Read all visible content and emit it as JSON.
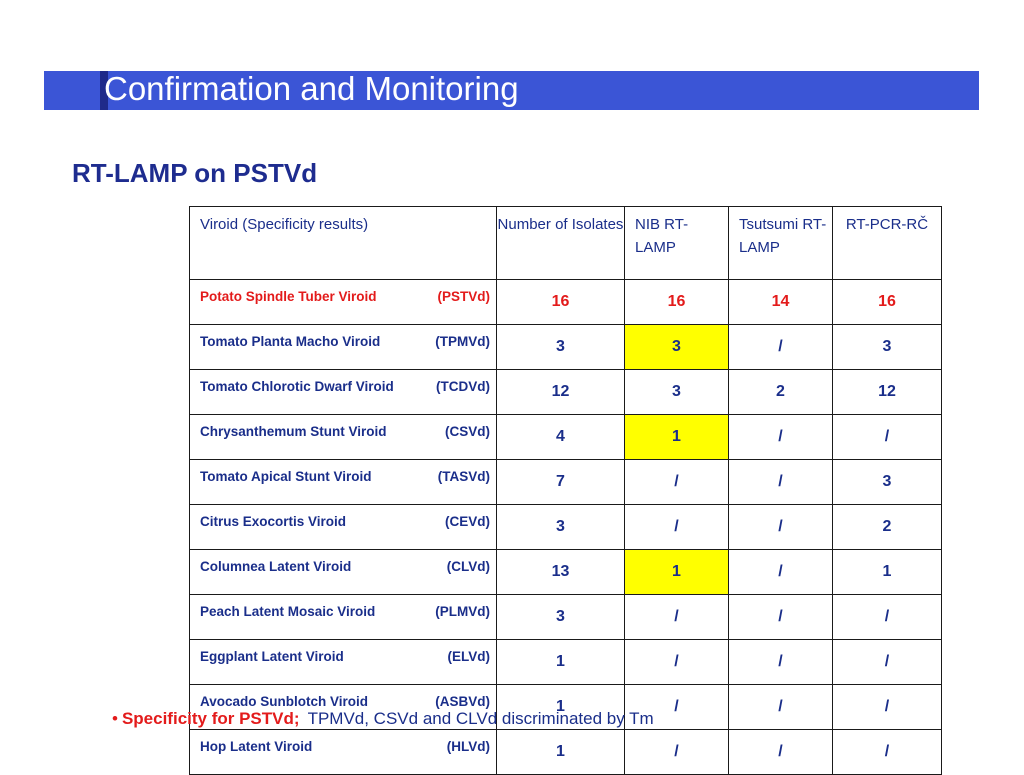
{
  "slide": {
    "title": "Confirmation and Monitoring",
    "subtitle": "RT-LAMP on PSTVd"
  },
  "table": {
    "headers": [
      "Viroid (Specificity results)",
      "Number of Isolates",
      "NIB RT-LAMP",
      "Tsutsumi RT-LAMP",
      "RT-PCR-RČ"
    ],
    "rows": [
      {
        "name": "Potato Spindle Tuber Viroid",
        "abbr": "(PSTVd)",
        "isolates": "16",
        "nib": "16",
        "tsutsumi": "14",
        "rtpcr": "16"
      },
      {
        "name": "Tomato Planta Macho Viroid",
        "abbr": "(TPMVd)",
        "isolates": "3",
        "nib": "3",
        "tsutsumi": "/",
        "rtpcr": "3"
      },
      {
        "name": "Tomato Chlorotic Dwarf Viroid",
        "abbr": "(TCDVd)",
        "isolates": "12",
        "nib": "3",
        "tsutsumi": "2",
        "rtpcr": "12"
      },
      {
        "name": "Chrysanthemum Stunt Viroid",
        "abbr": "(CSVd)",
        "isolates": "4",
        "nib": "1",
        "tsutsumi": "/",
        "rtpcr": "/"
      },
      {
        "name": "Tomato Apical Stunt Viroid",
        "abbr": "(TASVd)",
        "isolates": "7",
        "nib": "/",
        "tsutsumi": "/",
        "rtpcr": "3"
      },
      {
        "name": "Citrus Exocortis Viroid",
        "abbr": "(CEVd)",
        "isolates": "3",
        "nib": "/",
        "tsutsumi": "/",
        "rtpcr": "2"
      },
      {
        "name": "Columnea Latent Viroid",
        "abbr": "(CLVd)",
        "isolates": "13",
        "nib": "1",
        "tsutsumi": "/",
        "rtpcr": "1"
      },
      {
        "name": "Peach Latent Mosaic Viroid",
        "abbr": "(PLMVd)",
        "isolates": "3",
        "nib": "/",
        "tsutsumi": "/",
        "rtpcr": "/"
      },
      {
        "name": "Eggplant Latent Viroid",
        "abbr": "(ELVd)",
        "isolates": "1",
        "nib": "/",
        "tsutsumi": "/",
        "rtpcr": "/"
      },
      {
        "name": "Avocado Sunblotch Viroid",
        "abbr": "(ASBVd)",
        "isolates": "1",
        "nib": "/",
        "tsutsumi": "/",
        "rtpcr": "/"
      },
      {
        "name": "Hop Latent Viroid",
        "abbr": "(HLVd)",
        "isolates": "1",
        "nib": "/",
        "tsutsumi": "/",
        "rtpcr": "/"
      }
    ]
  },
  "footnote": {
    "bullet": "•",
    "label": "Specificity for PSTVd",
    "separator": ";",
    "text": "TPMVd, CSVd and CLVd discriminated by Tm"
  },
  "colors": {
    "title_bar": "#3b55d6",
    "title_accent": "#1f2a8a",
    "text_blue": "#1a2e8a",
    "highlight_red": "#e31b1b",
    "cell_highlight": "#ffff00"
  }
}
